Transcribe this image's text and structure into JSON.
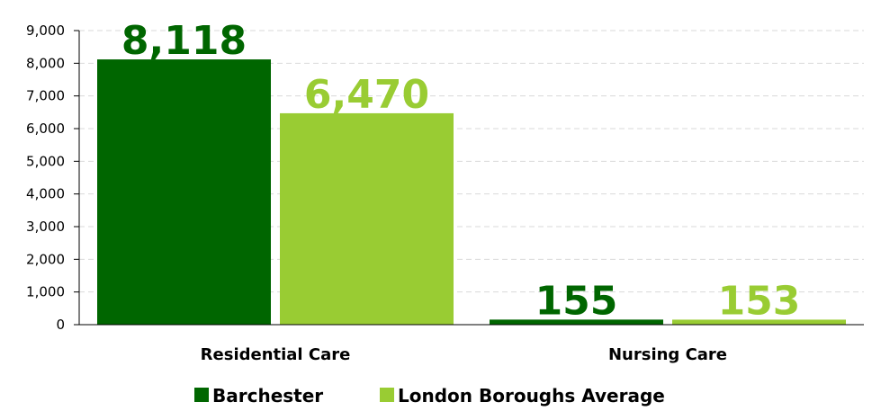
{
  "chart_data": {
    "type": "bar",
    "categories": [
      "Residential Care",
      "Nursing Care"
    ],
    "series": [
      {
        "name": "Barchester",
        "values": [
          8118,
          155
        ],
        "color": "#006600",
        "labels": [
          "8,118",
          "155"
        ]
      },
      {
        "name": "London Boroughs Average",
        "values": [
          6470,
          153
        ],
        "color": "#99cc33",
        "labels": [
          "6,470",
          "153"
        ]
      }
    ],
    "title": "",
    "xlabel": "",
    "ylabel": "",
    "ylim": [
      0,
      9000
    ],
    "yticks": [
      0,
      1000,
      2000,
      3000,
      4000,
      5000,
      6000,
      7000,
      8000,
      9000
    ],
    "ytick_labels": [
      "0",
      "1,000",
      "2,000",
      "3,000",
      "4,000",
      "5,000",
      "6,000",
      "7,000",
      "8,000",
      "9,000"
    ],
    "grid": true,
    "legend_position": "bottom"
  }
}
